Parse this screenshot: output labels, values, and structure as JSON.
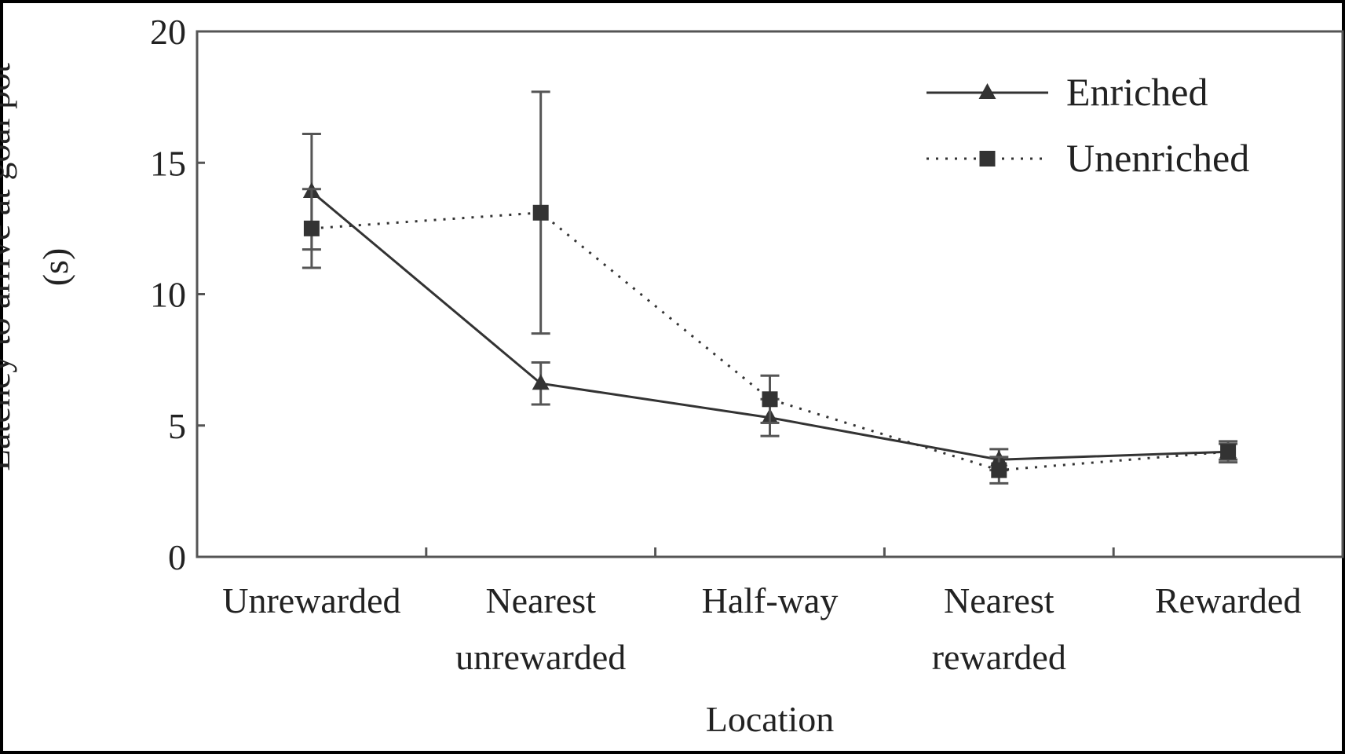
{
  "chart_data": {
    "type": "line",
    "x_label": "Location",
    "y_label": "Latency to arrive at goal pot (s)",
    "categories": [
      "Unrewarded",
      "Nearest unrewarded",
      "Half-way",
      "Nearest rewarded",
      "Rewarded"
    ],
    "series": [
      {
        "name": "Enriched",
        "color": "#333333",
        "dash": "solid",
        "marker": "triangle",
        "values": [
          13.9,
          6.6,
          5.3,
          3.7,
          4.0
        ],
        "errors": [
          2.2,
          0.8,
          0.7,
          0.4,
          0.4
        ]
      },
      {
        "name": "Unenriched",
        "color": "#333333",
        "dash": "dotted",
        "marker": "square",
        "values": [
          12.5,
          13.1,
          6.0,
          3.3,
          4.0
        ],
        "errors": [
          1.5,
          4.6,
          0.9,
          0.5,
          0.3
        ]
      }
    ],
    "ylim": [
      0,
      20
    ],
    "yticks": [
      0,
      5,
      10,
      15,
      20
    ],
    "grid": false,
    "legend": "upper right"
  }
}
